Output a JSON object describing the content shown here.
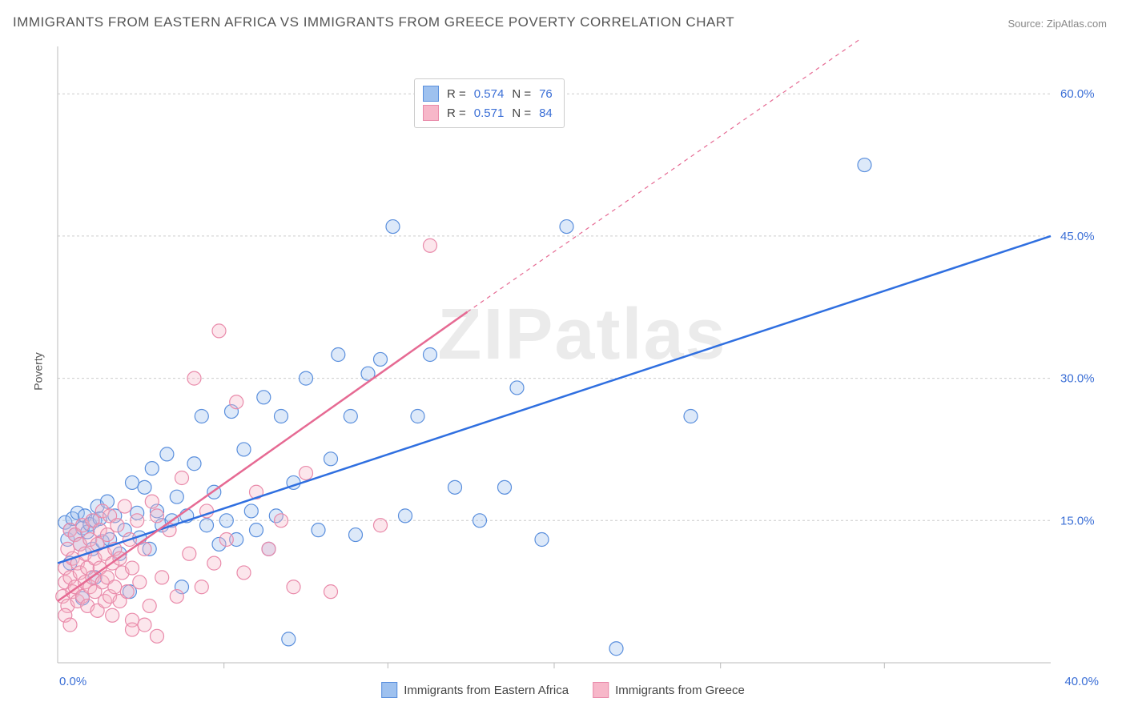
{
  "title": "IMMIGRANTS FROM EASTERN AFRICA VS IMMIGRANTS FROM GREECE POVERTY CORRELATION CHART",
  "source": "Source: ZipAtlas.com",
  "ylabel": "Poverty",
  "watermark": "ZIPatlas",
  "chart": {
    "type": "scatter",
    "xlim": [
      0,
      40
    ],
    "ylim": [
      0,
      65
    ],
    "x_ticks": [
      0.0,
      40.0
    ],
    "y_ticks": [
      15.0,
      30.0,
      45.0,
      60.0
    ],
    "x_tick_format": "pct1",
    "y_tick_format": "pct1",
    "grid_y": [
      15.0,
      30.0,
      45.0,
      60.0
    ],
    "grid_x_minor": [
      6.7,
      13.3,
      20.0,
      26.7,
      33.3
    ],
    "background_color": "#ffffff",
    "grid_color": "#cccccc",
    "axis_color": "#bbbbbb",
    "tick_label_color": "#3b6fd6",
    "tick_fontsize": 15,
    "label_fontsize": 14,
    "title_fontsize": 17,
    "marker_radius": 8.5,
    "marker_opacity": 0.35,
    "marker_stroke_width": 1.2,
    "trend_line_width": 2.5,
    "series": [
      {
        "name": "Immigrants from Eastern Africa",
        "fill_color": "#9ec1ef",
        "stroke_color": "#5a8fdd",
        "line_color": "#2f6fe0",
        "r": 0.574,
        "n": 76,
        "trend": {
          "x1": 0,
          "y1": 10.5,
          "x2": 40,
          "y2": 45.0,
          "dash_from_x": 40
        },
        "points": [
          [
            0.3,
            14.8
          ],
          [
            0.4,
            13.0
          ],
          [
            0.5,
            14.0
          ],
          [
            0.6,
            15.2
          ],
          [
            0.7,
            13.5
          ],
          [
            0.8,
            15.8
          ],
          [
            0.9,
            12.5
          ],
          [
            1.0,
            14.2
          ],
          [
            1.1,
            15.5
          ],
          [
            1.2,
            13.8
          ],
          [
            1.3,
            14.6
          ],
          [
            1.4,
            12.0
          ],
          [
            1.5,
            15.0
          ],
          [
            1.6,
            16.5
          ],
          [
            1.7,
            15.2
          ],
          [
            1.8,
            12.8
          ],
          [
            2.0,
            17.0
          ],
          [
            2.1,
            13.0
          ],
          [
            2.3,
            15.5
          ],
          [
            2.5,
            11.5
          ],
          [
            2.7,
            14.0
          ],
          [
            2.9,
            7.5
          ],
          [
            3.0,
            19.0
          ],
          [
            3.2,
            15.8
          ],
          [
            3.3,
            13.2
          ],
          [
            3.5,
            18.5
          ],
          [
            3.7,
            12.0
          ],
          [
            3.8,
            20.5
          ],
          [
            4.0,
            16.0
          ],
          [
            4.2,
            14.5
          ],
          [
            4.4,
            22.0
          ],
          [
            4.6,
            15.0
          ],
          [
            4.8,
            17.5
          ],
          [
            5.0,
            8.0
          ],
          [
            5.2,
            15.5
          ],
          [
            5.5,
            21.0
          ],
          [
            5.8,
            26.0
          ],
          [
            6.0,
            14.5
          ],
          [
            6.3,
            18.0
          ],
          [
            6.5,
            12.5
          ],
          [
            6.8,
            15.0
          ],
          [
            7.0,
            26.5
          ],
          [
            7.2,
            13.0
          ],
          [
            7.5,
            22.5
          ],
          [
            7.8,
            16.0
          ],
          [
            8.0,
            14.0
          ],
          [
            8.3,
            28.0
          ],
          [
            8.5,
            12.0
          ],
          [
            8.8,
            15.5
          ],
          [
            9.0,
            26.0
          ],
          [
            9.3,
            2.5
          ],
          [
            9.5,
            19.0
          ],
          [
            10.0,
            30.0
          ],
          [
            10.5,
            14.0
          ],
          [
            11.0,
            21.5
          ],
          [
            11.3,
            32.5
          ],
          [
            11.8,
            26.0
          ],
          [
            12.0,
            13.5
          ],
          [
            12.5,
            30.5
          ],
          [
            13.0,
            32.0
          ],
          [
            13.5,
            46.0
          ],
          [
            14.0,
            15.5
          ],
          [
            14.5,
            26.0
          ],
          [
            15.0,
            32.5
          ],
          [
            16.0,
            18.5
          ],
          [
            17.0,
            15.0
          ],
          [
            18.0,
            18.5
          ],
          [
            18.5,
            29.0
          ],
          [
            19.5,
            13.0
          ],
          [
            20.5,
            46.0
          ],
          [
            22.5,
            1.5
          ],
          [
            25.5,
            26.0
          ],
          [
            32.5,
            52.5
          ],
          [
            0.5,
            10.5
          ],
          [
            1.0,
            6.8
          ],
          [
            1.5,
            9.0
          ]
        ]
      },
      {
        "name": "Immigrants from Greece",
        "fill_color": "#f7b7c9",
        "stroke_color": "#e98aaa",
        "line_color": "#e66a93",
        "r": 0.571,
        "n": 84,
        "trend": {
          "x1": 0,
          "y1": 6.5,
          "x2": 16.5,
          "y2": 37.0,
          "dash_from_x": 16.5,
          "dash_x2": 33,
          "dash_y2": 67
        },
        "points": [
          [
            0.2,
            7.0
          ],
          [
            0.3,
            8.5
          ],
          [
            0.3,
            10.0
          ],
          [
            0.4,
            6.0
          ],
          [
            0.4,
            12.0
          ],
          [
            0.5,
            9.0
          ],
          [
            0.5,
            14.0
          ],
          [
            0.6,
            7.5
          ],
          [
            0.6,
            11.0
          ],
          [
            0.7,
            8.0
          ],
          [
            0.7,
            13.5
          ],
          [
            0.8,
            6.5
          ],
          [
            0.8,
            10.5
          ],
          [
            0.9,
            9.5
          ],
          [
            0.9,
            12.5
          ],
          [
            1.0,
            7.0
          ],
          [
            1.0,
            14.5
          ],
          [
            1.1,
            8.5
          ],
          [
            1.1,
            11.5
          ],
          [
            1.2,
            6.0
          ],
          [
            1.2,
            10.0
          ],
          [
            1.3,
            13.0
          ],
          [
            1.3,
            8.0
          ],
          [
            1.4,
            15.0
          ],
          [
            1.4,
            9.0
          ],
          [
            1.5,
            11.0
          ],
          [
            1.5,
            7.5
          ],
          [
            1.6,
            12.5
          ],
          [
            1.6,
            5.5
          ],
          [
            1.7,
            10.0
          ],
          [
            1.7,
            14.0
          ],
          [
            1.8,
            8.5
          ],
          [
            1.8,
            16.0
          ],
          [
            1.9,
            6.5
          ],
          [
            1.9,
            11.5
          ],
          [
            2.0,
            9.0
          ],
          [
            2.0,
            13.5
          ],
          [
            2.1,
            7.0
          ],
          [
            2.1,
            15.5
          ],
          [
            2.2,
            10.5
          ],
          [
            2.2,
            5.0
          ],
          [
            2.3,
            12.0
          ],
          [
            2.3,
            8.0
          ],
          [
            2.4,
            14.5
          ],
          [
            2.5,
            6.5
          ],
          [
            2.5,
            11.0
          ],
          [
            2.6,
            9.5
          ],
          [
            2.7,
            16.5
          ],
          [
            2.8,
            7.5
          ],
          [
            2.9,
            13.0
          ],
          [
            3.0,
            4.5
          ],
          [
            3.0,
            10.0
          ],
          [
            3.2,
            15.0
          ],
          [
            3.3,
            8.5
          ],
          [
            3.5,
            12.0
          ],
          [
            3.7,
            6.0
          ],
          [
            3.8,
            17.0
          ],
          [
            4.0,
            15.5
          ],
          [
            4.2,
            9.0
          ],
          [
            4.5,
            14.0
          ],
          [
            4.8,
            7.0
          ],
          [
            5.0,
            19.5
          ],
          [
            5.3,
            11.5
          ],
          [
            5.5,
            30.0
          ],
          [
            5.8,
            8.0
          ],
          [
            6.0,
            16.0
          ],
          [
            6.3,
            10.5
          ],
          [
            6.5,
            35.0
          ],
          [
            6.8,
            13.0
          ],
          [
            7.2,
            27.5
          ],
          [
            7.5,
            9.5
          ],
          [
            8.0,
            18.0
          ],
          [
            8.5,
            12.0
          ],
          [
            9.0,
            15.0
          ],
          [
            9.5,
            8.0
          ],
          [
            10.0,
            20.0
          ],
          [
            11.0,
            7.5
          ],
          [
            13.0,
            14.5
          ],
          [
            15.0,
            44.0
          ],
          [
            3.0,
            3.5
          ],
          [
            3.5,
            4.0
          ],
          [
            4.0,
            2.8
          ],
          [
            0.3,
            5.0
          ],
          [
            0.5,
            4.0
          ]
        ]
      }
    ]
  },
  "legend_top": {
    "r_label": "R =",
    "n_label": "N ="
  },
  "legend_bottom": {
    "items": [
      {
        "label": "Immigrants from Eastern Africa",
        "fill": "#9ec1ef",
        "stroke": "#5a8fdd"
      },
      {
        "label": "Immigrants from Greece",
        "fill": "#f7b7c9",
        "stroke": "#e98aaa"
      }
    ]
  }
}
